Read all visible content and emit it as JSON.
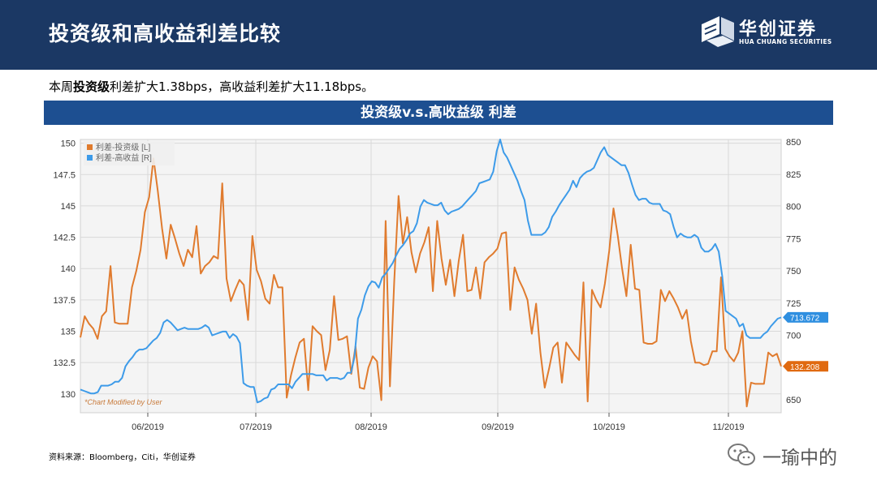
{
  "header": {
    "title": "投资级和高收益利差比较",
    "logo_cn": "华创证券",
    "logo_en": "HUA CHUANG SECURITIES"
  },
  "summary": {
    "prefix": "本周",
    "bold": "投资级",
    "rest": "利差扩大1.38bps，高收益利差扩大11.18bps。"
  },
  "chart_title": "投资级v.s.高收益级 利差",
  "source": "资料来源：Bloomberg，Citi，华创证券",
  "watermark": "一瑜中的",
  "colors": {
    "header_bg": "#1b3864",
    "chart_bar": "#1d4f91",
    "ig": "#e07b2e",
    "hy": "#3d9be9"
  },
  "chart_data": {
    "type": "line",
    "title": "投资级v.s.高收益级 利差",
    "x_tick_labels": [
      "06/2019",
      "07/2019",
      "08/2019",
      "09/2019",
      "10/2019",
      "11/2019"
    ],
    "y_left": {
      "ticks": [
        130,
        132.5,
        135,
        137.5,
        140,
        142.5,
        145,
        147.5,
        150
      ],
      "range": [
        128.5,
        150.3
      ]
    },
    "y_right": {
      "ticks": [
        650,
        675,
        700,
        725,
        750,
        775,
        800,
        825,
        850
      ],
      "range": [
        640,
        852
      ]
    },
    "grid": true,
    "legend_position": "top-left",
    "annotation": "*Chart Modified by User",
    "series": [
      {
        "name": "利差-投资级 [L]",
        "axis": "left",
        "last_label": "132.208",
        "values": [
          134.5,
          136.2,
          135.6,
          135.2,
          134.4,
          136.2,
          136.6,
          140.2,
          135.7,
          135.6,
          135.6,
          135.6,
          138.5,
          139.8,
          141.5,
          144.5,
          145.7,
          148.8,
          146.2,
          143.2,
          140.8,
          143.5,
          142.4,
          141.2,
          140.2,
          141.5,
          140.9,
          143.4,
          139.6,
          140.2,
          140.5,
          141.0,
          140.8,
          146.8,
          139.2,
          137.4,
          138.3,
          139.1,
          138.7,
          135.9,
          142.6,
          139.9,
          139.0,
          137.6,
          137.2,
          139.5,
          138.5,
          138.5,
          129.7,
          131.5,
          132.9,
          134.1,
          134.4,
          130.3,
          135.4,
          135.0,
          134.7,
          131.9,
          133.5,
          137.8,
          134.3,
          134.4,
          134.6,
          131.6,
          133.8,
          130.5,
          130.4,
          132.1,
          133.0,
          132.6,
          129.5,
          143.8,
          130.6,
          139.0,
          145.8,
          142.0,
          144.1,
          141.3,
          139.7,
          141.2,
          142.1,
          143.3,
          138.2,
          143.8,
          140.8,
          138.7,
          140.7,
          137.8,
          140.6,
          142.7,
          138.2,
          138.3,
          140.1,
          137.6,
          140.5,
          140.9,
          141.2,
          141.6,
          142.8,
          142.9,
          136.7,
          140.1,
          139.1,
          138.4,
          137.5,
          134.8,
          137.2,
          133.3,
          130.5,
          132.0,
          133.7,
          134.1,
          130.9,
          134.1,
          133.6,
          133.1,
          132.7,
          138.9,
          129.4,
          138.3,
          137.5,
          136.9,
          138.8,
          141.4,
          144.8,
          142.6,
          140.0,
          137.8,
          141.9,
          138.4,
          138.3,
          134.1,
          134.0,
          134.0,
          134.2,
          138.3,
          137.4,
          138.2,
          137.6,
          136.9,
          136.0,
          136.7,
          134.2,
          132.5,
          132.5,
          132.3,
          132.4,
          133.4,
          133.4,
          139.3,
          133.6,
          133.0,
          132.6,
          133.3,
          135.0,
          129.0,
          130.9,
          130.8,
          130.8,
          130.8,
          133.3,
          133.0,
          133.2,
          132.2
        ]
      },
      {
        "name": "利差-高收益 [R]",
        "axis": "right",
        "last_label": "713.672",
        "values": [
          658,
          657,
          656,
          655,
          655,
          656,
          661,
          661,
          661,
          662,
          664,
          664,
          667,
          676,
          680,
          683,
          687,
          689,
          689,
          690,
          693,
          696,
          698,
          702,
          710,
          712,
          710,
          707,
          704,
          705,
          706,
          705,
          705,
          705,
          705,
          706,
          708,
          706,
          700,
          701,
          702,
          703,
          703,
          698,
          701,
          699,
          694,
          663,
          661,
          660,
          660,
          648,
          649,
          651,
          652,
          658,
          659,
          662,
          662,
          662,
          662,
          659,
          664,
          667,
          670,
          670,
          670,
          670,
          669,
          669,
          669,
          665,
          667,
          667,
          667,
          666,
          667,
          671,
          671,
          683,
          713,
          720,
          731,
          738,
          742,
          741,
          737,
          745,
          748,
          752,
          756,
          762,
          767,
          770,
          774,
          779,
          781,
          787,
          800,
          805,
          803,
          802,
          801,
          801,
          803,
          797,
          794,
          796,
          797,
          798,
          800,
          803,
          806,
          809,
          812,
          818,
          819,
          820,
          821,
          827,
          843,
          852,
          842,
          838,
          832,
          826,
          820,
          812,
          805,
          789,
          778,
          778,
          778,
          778,
          780,
          784,
          792,
          796,
          801,
          805,
          809,
          813,
          820,
          815,
          822,
          825,
          827,
          828,
          830,
          836,
          842,
          846,
          840,
          838,
          836,
          834,
          832,
          832,
          826,
          817,
          809,
          805,
          806,
          806,
          803,
          802,
          802,
          802,
          797,
          796,
          794,
          784,
          776,
          779,
          777,
          776,
          776,
          778,
          776,
          768,
          765,
          765,
          767,
          771,
          765,
          746,
          719,
          717,
          715,
          713,
          707,
          709,
          700,
          698,
          698,
          698,
          698,
          701,
          703,
          707,
          710,
          713,
          714
        ]
      }
    ]
  }
}
